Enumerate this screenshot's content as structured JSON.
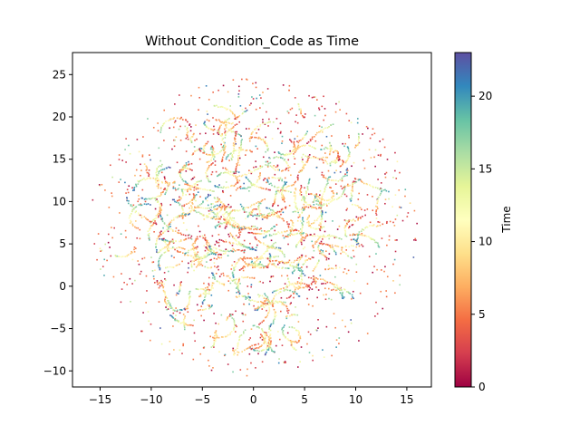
{
  "chart_data": {
    "type": "scatter",
    "title": "Without Condition_Code as Time",
    "xlabel": "",
    "ylabel": "",
    "xlim": [
      -17.7,
      17.4
    ],
    "ylim": [
      -11.9,
      27.6
    ],
    "xticks": [
      -15,
      -10,
      -5,
      0,
      5,
      10,
      15
    ],
    "yticks": [
      -10,
      -5,
      0,
      5,
      10,
      15,
      20,
      25
    ],
    "grid": false,
    "legend": "none",
    "colorbar": {
      "label": "Time",
      "min": 0,
      "max": 23,
      "ticks": [
        0,
        5,
        10,
        15,
        20
      ],
      "colormap": "Spectral",
      "stops": [
        "#9e0142",
        "#d53e4f",
        "#f46d43",
        "#fdae61",
        "#fee08b",
        "#ffffbf",
        "#e6f598",
        "#abdda4",
        "#66c2a5",
        "#3288bd",
        "#5e4fa2"
      ]
    },
    "points_description": "dense t-SNE style embedding of several thousand points inside a roughly circular region centred near (0, 7) with radius about 16; points form short curved streaks coloured by Time (0-23); approximate streak clusters listed below",
    "clusters": [
      {
        "x": -4.5,
        "y": 17.5,
        "spread": 1.6,
        "n": 140
      },
      {
        "x": -1.5,
        "y": 18.5,
        "spread": 1.4,
        "n": 110
      },
      {
        "x": 3.5,
        "y": 18.0,
        "spread": 1.3,
        "n": 90
      },
      {
        "x": 5.0,
        "y": 14.5,
        "spread": 1.0,
        "n": 80
      },
      {
        "x": 0.5,
        "y": 15.0,
        "spread": 1.0,
        "n": 60
      },
      {
        "x": -6.0,
        "y": 13.0,
        "spread": 1.6,
        "n": 120
      },
      {
        "x": -2.5,
        "y": 13.5,
        "spread": 1.5,
        "n": 120
      },
      {
        "x": 7.5,
        "y": 14.5,
        "spread": 1.3,
        "n": 80
      },
      {
        "x": -8.5,
        "y": 11.0,
        "spread": 1.5,
        "n": 110
      },
      {
        "x": -4.0,
        "y": 10.5,
        "spread": 1.8,
        "n": 150
      },
      {
        "x": 1.5,
        "y": 11.0,
        "spread": 1.6,
        "n": 140
      },
      {
        "x": 6.0,
        "y": 11.5,
        "spread": 1.6,
        "n": 120
      },
      {
        "x": 10.0,
        "y": 11.0,
        "spread": 1.5,
        "n": 90
      },
      {
        "x": -6.5,
        "y": 7.5,
        "spread": 1.8,
        "n": 160
      },
      {
        "x": -2.0,
        "y": 7.0,
        "spread": 1.8,
        "n": 180
      },
      {
        "x": 2.5,
        "y": 7.5,
        "spread": 1.8,
        "n": 170
      },
      {
        "x": 6.5,
        "y": 7.0,
        "spread": 1.7,
        "n": 140
      },
      {
        "x": 10.0,
        "y": 6.0,
        "spread": 1.5,
        "n": 90
      },
      {
        "x": -9.5,
        "y": 5.0,
        "spread": 1.5,
        "n": 90
      },
      {
        "x": -5.0,
        "y": 4.0,
        "spread": 1.7,
        "n": 140
      },
      {
        "x": -0.5,
        "y": 4.0,
        "spread": 1.7,
        "n": 150
      },
      {
        "x": 4.0,
        "y": 3.5,
        "spread": 1.6,
        "n": 120
      },
      {
        "x": 8.0,
        "y": 3.5,
        "spread": 1.5,
        "n": 100
      },
      {
        "x": -7.5,
        "y": 1.0,
        "spread": 1.4,
        "n": 90
      },
      {
        "x": -2.5,
        "y": 1.0,
        "spread": 1.5,
        "n": 110
      },
      {
        "x": 2.5,
        "y": 0.5,
        "spread": 1.4,
        "n": 100
      },
      {
        "x": 7.0,
        "y": 0.5,
        "spread": 1.4,
        "n": 80
      },
      {
        "x": -5.0,
        "y": -3.0,
        "spread": 1.3,
        "n": 80
      },
      {
        "x": -1.0,
        "y": -3.5,
        "spread": 1.3,
        "n": 80
      },
      {
        "x": 3.0,
        "y": -3.0,
        "spread": 1.3,
        "n": 80
      },
      {
        "x": -3.0,
        "y": -6.5,
        "spread": 1.1,
        "n": 60
      },
      {
        "x": 1.5,
        "y": -6.5,
        "spread": 1.1,
        "n": 60
      },
      {
        "x": 4.0,
        "y": -6.5,
        "spread": 1.0,
        "n": 50
      },
      {
        "x": -1.0,
        "y": -8.5,
        "spread": 0.8,
        "n": 30
      }
    ],
    "background_scatter": {
      "cx": 0,
      "cy": 7,
      "radius": 16,
      "n": 900
    }
  }
}
